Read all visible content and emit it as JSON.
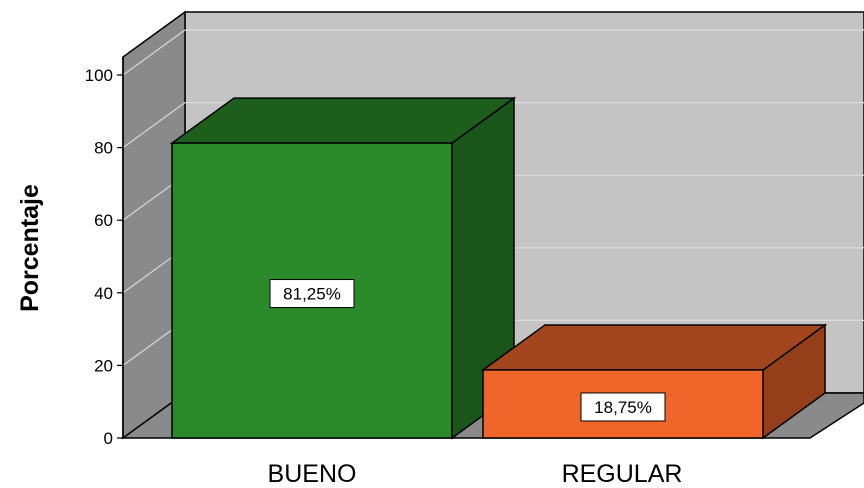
{
  "chart_data": {
    "type": "bar",
    "title": "",
    "xlabel": "",
    "ylabel": "Porcentaje",
    "ylim": [
      0,
      100
    ],
    "yticks": [
      0,
      20,
      40,
      60,
      80,
      100
    ],
    "categories": [
      "BUENO",
      "REGULAR"
    ],
    "values": [
      81.25,
      18.75
    ],
    "data_labels": [
      "81,25%",
      "18,75%"
    ],
    "colors": [
      "#2a8a2a",
      "#f0662a"
    ],
    "grid": true,
    "legend": "none",
    "style": "3d"
  }
}
